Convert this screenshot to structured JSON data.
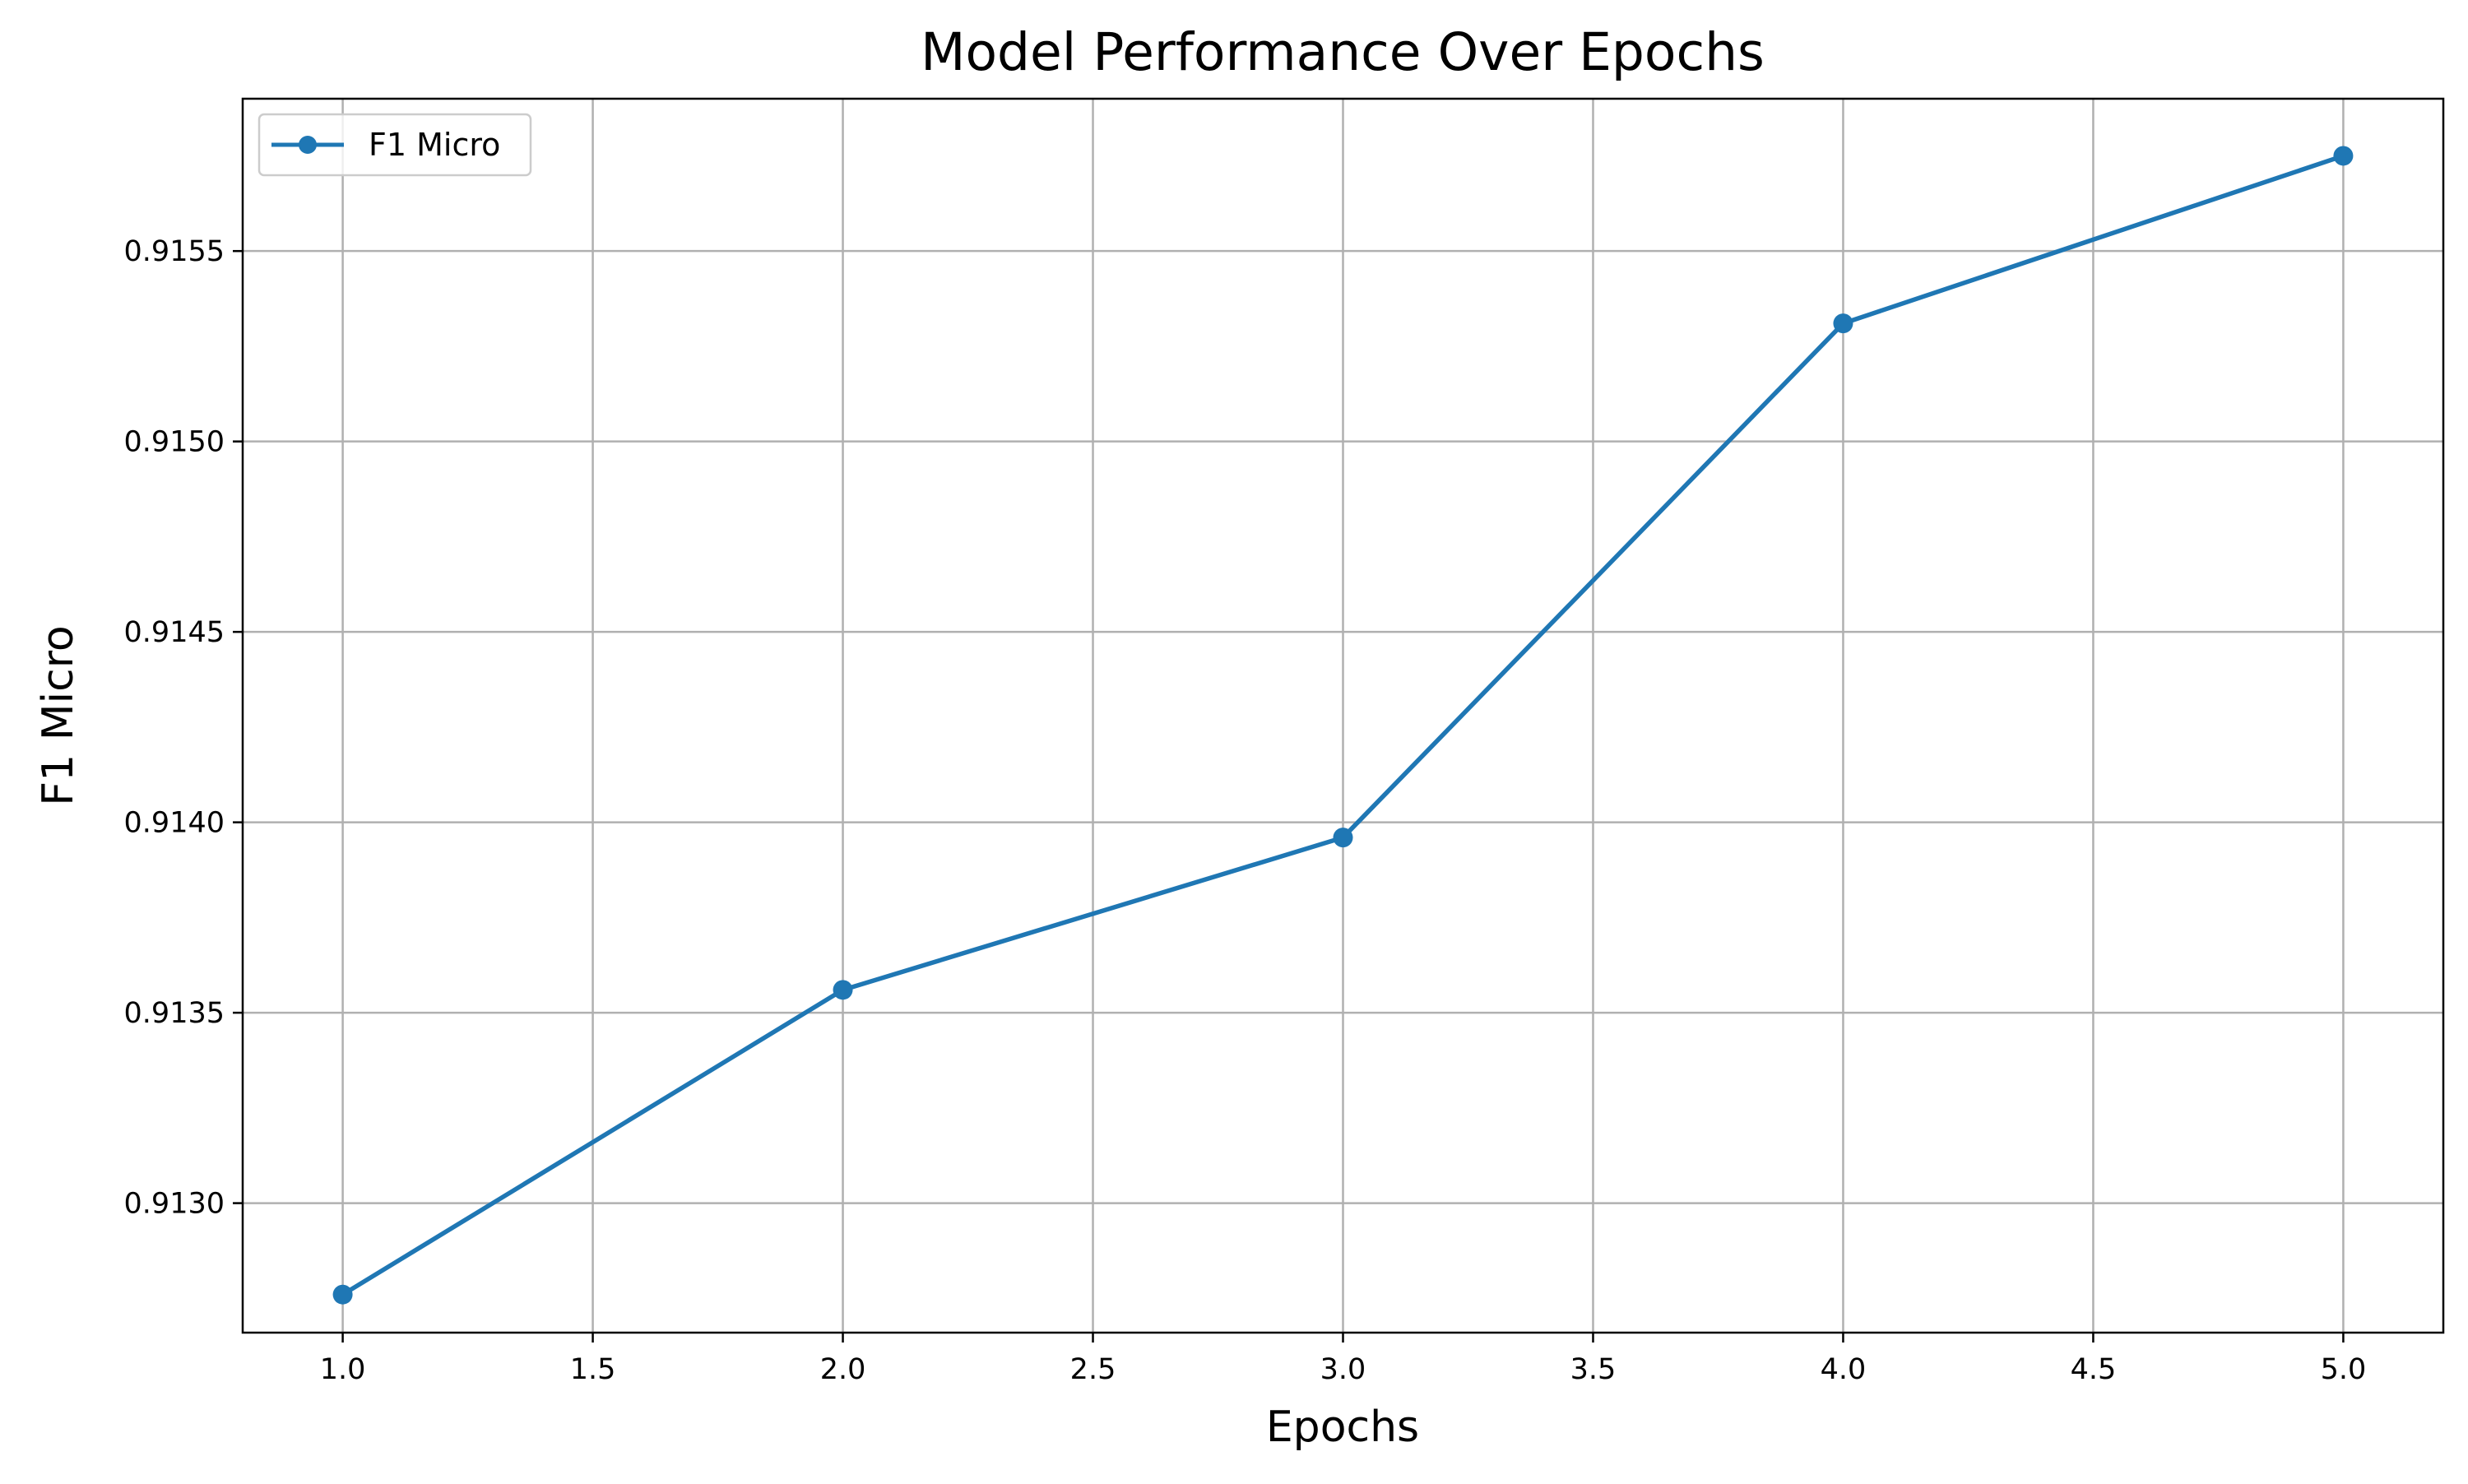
{
  "chart_data": {
    "type": "line",
    "title": "Model Performance Over Epochs",
    "xlabel": "Epochs",
    "ylabel": "F1 Micro",
    "xlim": [
      0.8,
      5.2
    ],
    "ylim": [
      0.91266,
      0.9159
    ],
    "x_ticks": [
      {
        "value": 1.0,
        "label": "1.0"
      },
      {
        "value": 1.5,
        "label": "1.5"
      },
      {
        "value": 2.0,
        "label": "2.0"
      },
      {
        "value": 2.5,
        "label": "2.5"
      },
      {
        "value": 3.0,
        "label": "3.0"
      },
      {
        "value": 3.5,
        "label": "3.5"
      },
      {
        "value": 4.0,
        "label": "4.0"
      },
      {
        "value": 4.5,
        "label": "4.5"
      },
      {
        "value": 5.0,
        "label": "5.0"
      }
    ],
    "y_ticks": [
      {
        "value": 0.913,
        "label": "0.9130"
      },
      {
        "value": 0.9135,
        "label": "0.9135"
      },
      {
        "value": 0.914,
        "label": "0.9140"
      },
      {
        "value": 0.9145,
        "label": "0.9145"
      },
      {
        "value": 0.915,
        "label": "0.9150"
      },
      {
        "value": 0.9155,
        "label": "0.9155"
      }
    ],
    "grid": true,
    "legend_position": "top-left",
    "series": [
      {
        "name": "F1 Micro",
        "color": "#1f77b4",
        "marker": "circle",
        "x": [
          1,
          2,
          3,
          4,
          5
        ],
        "y": [
          0.91276,
          0.91356,
          0.91396,
          0.91531,
          0.91575
        ]
      }
    ]
  }
}
